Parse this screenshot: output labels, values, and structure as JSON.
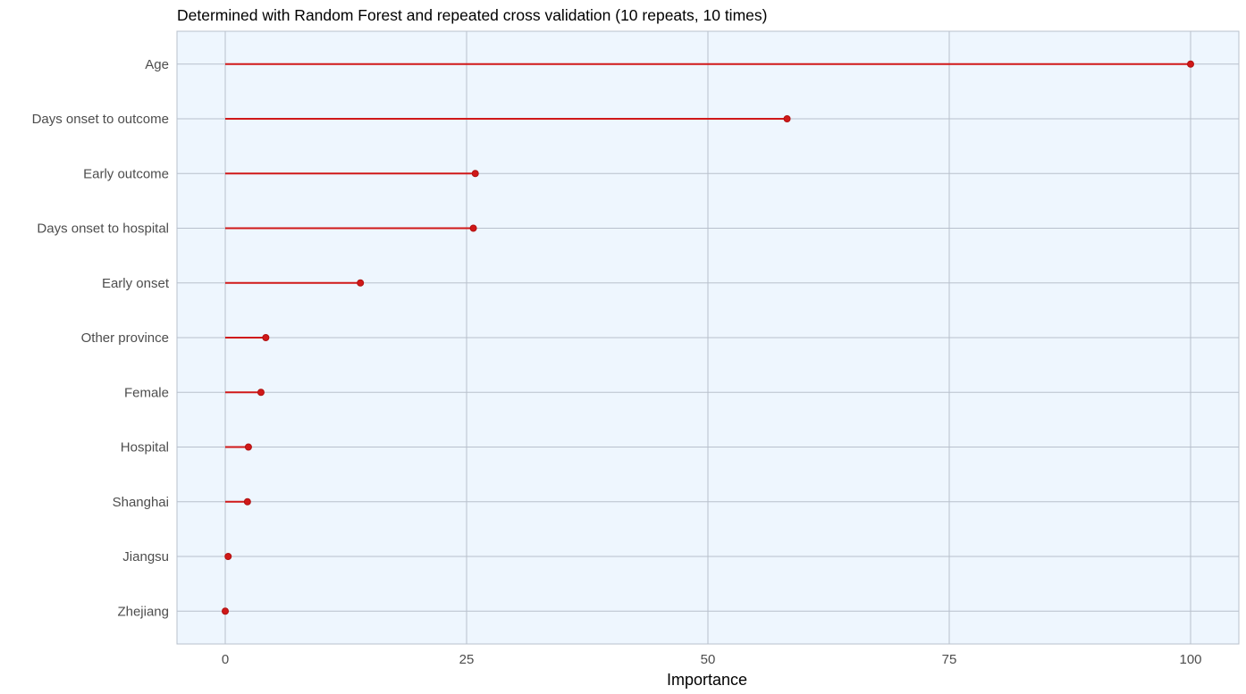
{
  "chart_data": {
    "type": "lollipop",
    "orientation": "horizontal",
    "title": "Determined with Random Forest and repeated cross validation (10 repeats, 10 times)",
    "xlabel": "Importance",
    "ylabel": "",
    "xlim": [
      -5,
      105
    ],
    "xticks": [
      0,
      25,
      50,
      75,
      100
    ],
    "grid": true,
    "legend": "none",
    "colors": {
      "panel_background": "#eef6fe",
      "panel_border": "#b8c0cc",
      "grid": "#b8c0cc",
      "segment": "#d01818",
      "point": "#d01818"
    },
    "categories": [
      "Age",
      "Days onset to outcome",
      "Early outcome",
      "Days onset to hospital",
      "Early onset",
      "Other province",
      "Female",
      "Hospital",
      "Shanghai",
      "Jiangsu",
      "Zhejiang"
    ],
    "values": [
      100,
      58.2,
      25.9,
      25.7,
      14.0,
      4.2,
      3.7,
      2.4,
      2.3,
      0.3,
      0.0
    ]
  }
}
